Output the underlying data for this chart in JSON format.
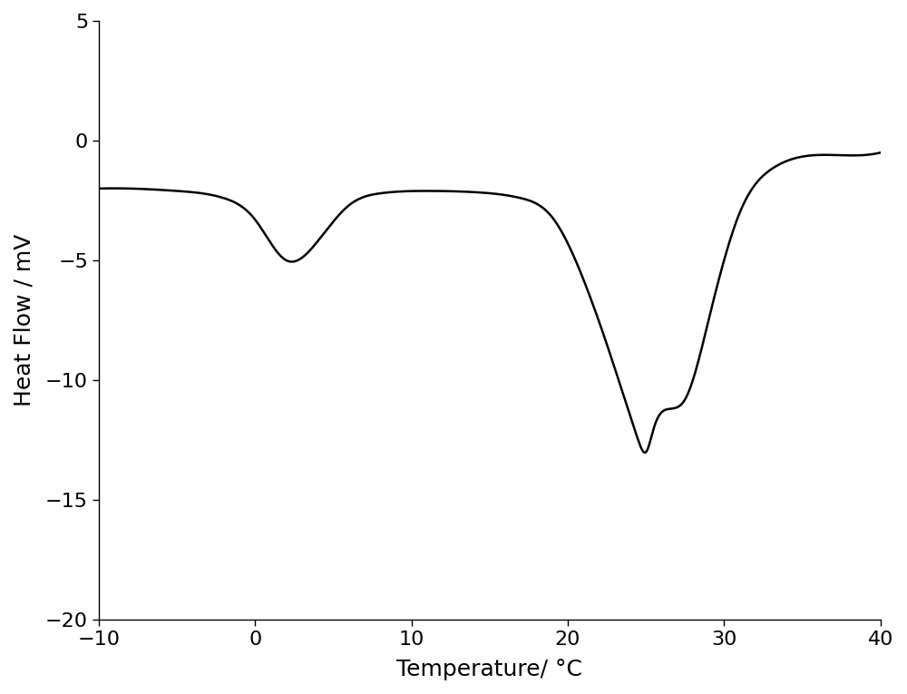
{
  "title": "",
  "xlabel": "Temperature/ °C",
  "ylabel": "Heat Flow / mV",
  "xlim": [
    -10,
    40
  ],
  "ylim": [
    -20,
    5
  ],
  "xticks": [
    -10,
    0,
    10,
    20,
    30,
    40
  ],
  "yticks": [
    -20,
    -15,
    -10,
    -5,
    0,
    5
  ],
  "line_color": "#000000",
  "line_width": 1.8,
  "background_color": "#ffffff",
  "xlabel_fontsize": 18,
  "ylabel_fontsize": 18,
  "tick_fontsize": 16,
  "control_points_x": [
    -10,
    -8,
    -5,
    -2,
    0,
    2,
    4,
    6,
    8,
    11,
    14,
    17,
    19,
    21,
    23,
    24.5,
    25.0,
    25.5,
    26.5,
    27.5,
    29,
    31,
    33,
    36,
    40
  ],
  "control_points_y": [
    -2.0,
    -2.0,
    -2.1,
    -2.4,
    -3.3,
    -5.0,
    -4.2,
    -2.7,
    -2.2,
    -2.1,
    -2.15,
    -2.4,
    -3.2,
    -5.8,
    -9.5,
    -12.5,
    -13.0,
    -12.0,
    -11.2,
    -10.8,
    -7.5,
    -3.0,
    -1.2,
    -0.6,
    -0.5
  ]
}
